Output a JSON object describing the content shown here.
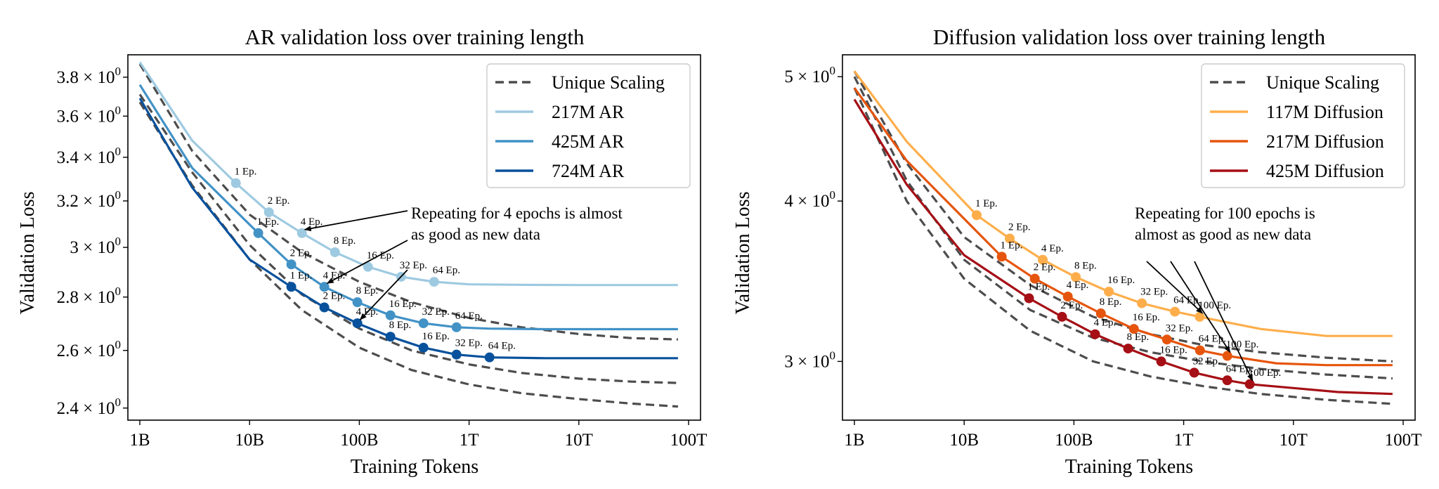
{
  "chart_data": [
    {
      "type": "line",
      "title": "AR validation loss over training length",
      "xlabel": "Training Tokens",
      "ylabel": "Validation Loss",
      "xscale": "log",
      "yscale": "log",
      "xlim": [
        1,
        100000
      ],
      "ylim": [
        2.36,
        3.92
      ],
      "x_ticks": [
        {
          "value": 1,
          "label": "1B"
        },
        {
          "value": 10,
          "label": "10B"
        },
        {
          "value": 100,
          "label": "100B"
        },
        {
          "value": 1000,
          "label": "1T"
        },
        {
          "value": 10000,
          "label": "10T"
        },
        {
          "value": 100000,
          "label": "100T"
        }
      ],
      "y_ticks": [
        {
          "value": 2.4,
          "mantissa": "2.4",
          "label": "2.4 × 10⁰"
        },
        {
          "value": 2.6,
          "mantissa": "2.6",
          "label": "2.6 × 10⁰"
        },
        {
          "value": 2.8,
          "mantissa": "2.8",
          "label": "2.8 × 10⁰"
        },
        {
          "value": 3.0,
          "mantissa": "3",
          "label": "3 × 10⁰"
        },
        {
          "value": 3.2,
          "mantissa": "3.2",
          "label": "3.2 × 10⁰"
        },
        {
          "value": 3.4,
          "mantissa": "3.4",
          "label": "3.4 × 10⁰"
        },
        {
          "value": 3.6,
          "mantissa": "3.6",
          "label": "3.6 × 10⁰"
        },
        {
          "value": 3.8,
          "mantissa": "3.8",
          "label": "3.8 × 10⁰"
        }
      ],
      "legend": {
        "position": "top-right"
      },
      "dashed_series": [
        {
          "name": "Unique Scaling",
          "color": "#4d4d4d",
          "x": [
            1,
            3,
            10,
            30,
            100,
            300,
            1000,
            3000,
            10000,
            30000,
            80000
          ],
          "y": [
            3.67,
            3.27,
            2.95,
            2.75,
            2.61,
            2.53,
            2.48,
            2.45,
            2.43,
            2.415,
            2.405
          ]
        },
        {
          "name": "Unique Scaling",
          "color": "#4d4d4d",
          "x": [
            1,
            3,
            10,
            30,
            100,
            300,
            1000,
            3000,
            10000,
            30000,
            80000
          ],
          "y": [
            3.71,
            3.33,
            3.01,
            2.81,
            2.68,
            2.6,
            2.55,
            2.52,
            2.5,
            2.49,
            2.485
          ]
        },
        {
          "name": "Unique Scaling",
          "color": "#4d4d4d",
          "x": [
            1,
            3,
            10,
            30,
            100,
            300,
            1000,
            3000,
            10000,
            30000,
            80000
          ],
          "y": [
            3.87,
            3.43,
            3.14,
            2.98,
            2.86,
            2.78,
            2.72,
            2.685,
            2.66,
            2.645,
            2.64
          ]
        }
      ],
      "series": [
        {
          "name": "217M AR",
          "color": "#9ecae1",
          "x": [
            1,
            3,
            7.5,
            15,
            30,
            60,
            120,
            240,
            480,
            1000,
            3000,
            10000,
            80000
          ],
          "y": [
            3.88,
            3.48,
            3.28,
            3.15,
            3.06,
            2.98,
            2.92,
            2.88,
            2.86,
            2.85,
            2.848,
            2.847,
            2.847
          ],
          "markers": {
            "x": [
              7.5,
              15,
              30,
              60,
              120,
              240,
              480
            ],
            "labels": [
              "1 Ep.",
              "2 Ep.",
              "4 Ep.",
              "8 Ep.",
              "16 Ep.",
              "32 Ep.",
              "64 Ep."
            ]
          }
        },
        {
          "name": "425M AR",
          "color": "#4292c6",
          "x": [
            1,
            3,
            12,
            24,
            48,
            96,
            192,
            384,
            768,
            1500,
            5000,
            80000
          ],
          "y": [
            3.76,
            3.35,
            3.06,
            2.93,
            2.84,
            2.78,
            2.73,
            2.7,
            2.685,
            2.68,
            2.678,
            2.678
          ],
          "markers": {
            "x": [
              12,
              24,
              48,
              96,
              192,
              384,
              768
            ],
            "labels": [
              "1 Ep.",
              "2 Ep.",
              "4 Ep.",
              "8 Ep.",
              "16 Ep.",
              "32 Ep.",
              "64 Ep."
            ]
          }
        },
        {
          "name": "724M AR",
          "color": "#08519c",
          "x": [
            1,
            3,
            10,
            24,
            48,
            96,
            192,
            384,
            768,
            1536,
            5000,
            80000
          ],
          "y": [
            3.69,
            3.26,
            2.95,
            2.84,
            2.76,
            2.7,
            2.65,
            2.61,
            2.585,
            2.575,
            2.572,
            2.572
          ],
          "markers": {
            "x": [
              24,
              48,
              96,
              192,
              384,
              768,
              1536
            ],
            "labels": [
              "1 Ep.",
              "2 Ep.",
              "4 Ep.",
              "8 Ep.",
              "16 Ep.",
              "32 Ep.",
              "64 Ep."
            ]
          }
        }
      ],
      "legend_entries": [
        {
          "label": "Unique Scaling",
          "color": "#4d4d4d",
          "dashed": true
        },
        {
          "label": "217M AR",
          "color": "#9ecae1",
          "dashed": false
        },
        {
          "label": "425M AR",
          "color": "#4292c6",
          "dashed": false
        },
        {
          "label": "724M AR",
          "color": "#08519c",
          "dashed": false
        }
      ],
      "annotation": {
        "lines": [
          "Repeating for 4 epochs is almost",
          "as good as new data"
        ],
        "targets": [
          {
            "series": 0,
            "marker": 2
          },
          {
            "series": 1,
            "marker": 2
          },
          {
            "series": 2,
            "marker": 2
          }
        ]
      }
    },
    {
      "type": "line",
      "title": "Diffusion validation loss over training length",
      "xlabel": "Training Tokens",
      "ylabel": "Validation Loss",
      "xscale": "log",
      "yscale": "log",
      "xlim": [
        1,
        100000
      ],
      "ylim": [
        2.7,
        5.2
      ],
      "x_ticks": [
        {
          "value": 1,
          "label": "1B"
        },
        {
          "value": 10,
          "label": "10B"
        },
        {
          "value": 100,
          "label": "100B"
        },
        {
          "value": 1000,
          "label": "1T"
        },
        {
          "value": 10000,
          "label": "10T"
        },
        {
          "value": 100000,
          "label": "100T"
        }
      ],
      "y_ticks": [
        {
          "value": 3,
          "mantissa": "3",
          "label": "3 × 10⁰"
        },
        {
          "value": 4,
          "mantissa": "4",
          "label": "4 × 10⁰"
        },
        {
          "value": 5,
          "mantissa": "5",
          "label": "5 × 10⁰"
        }
      ],
      "legend": {
        "position": "top-right"
      },
      "dashed_series": [
        {
          "name": "Unique Scaling",
          "color": "#4d4d4d",
          "x": [
            1,
            3,
            10,
            40,
            150,
            500,
            1500,
            5000,
            20000,
            80000
          ],
          "y": [
            4.9,
            4.0,
            3.48,
            3.17,
            3.0,
            2.92,
            2.87,
            2.83,
            2.8,
            2.78
          ]
        },
        {
          "name": "Unique Scaling",
          "color": "#4d4d4d",
          "x": [
            1,
            3,
            10,
            40,
            150,
            500,
            1500,
            5000,
            20000,
            80000
          ],
          "y": [
            5.0,
            4.15,
            3.6,
            3.29,
            3.13,
            3.05,
            3.0,
            2.96,
            2.93,
            2.91
          ]
        },
        {
          "name": "Unique Scaling",
          "color": "#4d4d4d",
          "x": [
            1,
            3,
            10,
            40,
            150,
            500,
            1500,
            5000,
            20000,
            80000
          ],
          "y": [
            5.05,
            4.28,
            3.75,
            3.44,
            3.25,
            3.15,
            3.09,
            3.05,
            3.02,
            3.0
          ]
        }
      ],
      "series": [
        {
          "name": "117M Diffusion",
          "color": "#fdae4b",
          "x": [
            1,
            3,
            13,
            26,
            52,
            104,
            208,
            416,
            832,
            1400,
            5000,
            20000,
            80000
          ],
          "y": [
            5.05,
            4.45,
            3.9,
            3.74,
            3.6,
            3.49,
            3.4,
            3.33,
            3.28,
            3.25,
            3.18,
            3.14,
            3.14
          ],
          "markers": {
            "x": [
              13,
              26,
              52,
              104,
              208,
              416,
              832,
              1400
            ],
            "labels": [
              "1 Ep.",
              "2 Ep.",
              "4 Ep.",
              "8 Ep.",
              "16 Ep.",
              "32 Ep.",
              "64 Ep.",
              "100 Ep."
            ]
          }
        },
        {
          "name": "217M Diffusion",
          "color": "#e6550d",
          "x": [
            1,
            3,
            22,
            44,
            88,
            176,
            352,
            704,
            1408,
            2500,
            7000,
            20000,
            80000
          ],
          "y": [
            4.9,
            4.3,
            3.62,
            3.48,
            3.37,
            3.27,
            3.18,
            3.12,
            3.06,
            3.03,
            2.99,
            2.98,
            2.98
          ],
          "markers": {
            "x": [
              22,
              44,
              88,
              176,
              352,
              704,
              1408,
              2500
            ],
            "labels": [
              "1 Ep.",
              "2 Ep.",
              "4 Ep.",
              "8 Ep.",
              "16 Ep.",
              "32 Ep.",
              "64 Ep.",
              "100 Ep."
            ]
          }
        },
        {
          "name": "425M Diffusion",
          "color": "#a50f15",
          "x": [
            1,
            3,
            10,
            39,
            78,
            156,
            312,
            624,
            1248,
            2496,
            4000,
            10000,
            25000,
            80000
          ],
          "y": [
            4.8,
            4.12,
            3.63,
            3.36,
            3.25,
            3.15,
            3.07,
            3.0,
            2.94,
            2.9,
            2.88,
            2.86,
            2.84,
            2.83
          ],
          "markers": {
            "x": [
              39,
              78,
              156,
              312,
              624,
              1248,
              2496,
              4000
            ],
            "labels": [
              "1 Ep.",
              "2 Ep.",
              "4 Ep.",
              "8 Ep.",
              "16 Ep.",
              "32 Ep.",
              "64 Ep.",
              "100 Ep."
            ]
          }
        }
      ],
      "legend_entries": [
        {
          "label": "Unique Scaling",
          "color": "#4d4d4d",
          "dashed": true
        },
        {
          "label": "117M Diffusion",
          "color": "#fdae4b",
          "dashed": false
        },
        {
          "label": "217M Diffusion",
          "color": "#e6550d",
          "dashed": false
        },
        {
          "label": "425M Diffusion",
          "color": "#a50f15",
          "dashed": false
        }
      ],
      "annotation": {
        "lines": [
          "Repeating for 100 epochs is",
          "almost as good as new data"
        ],
        "targets": [
          {
            "series": 0,
            "marker": 7
          },
          {
            "series": 1,
            "marker": 7
          },
          {
            "series": 2,
            "marker": 7
          }
        ]
      }
    }
  ]
}
